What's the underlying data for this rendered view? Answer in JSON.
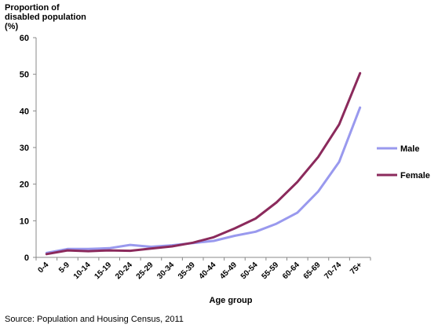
{
  "chart_data": {
    "type": "line",
    "ylabel_lines": [
      "Proportion of",
      "disabled population",
      "(%)"
    ],
    "xlabel": "Age group",
    "categories": [
      "0-4",
      "5-9",
      "10-14",
      "15-19",
      "20-24",
      "25-29",
      "30-34",
      "35-39",
      "40-44",
      "45-49",
      "50-54",
      "55-59",
      "60-64",
      "65-69",
      "70-74",
      "75+"
    ],
    "ylim": [
      0,
      60
    ],
    "yticks": [
      0,
      10,
      20,
      30,
      40,
      50,
      60
    ],
    "grid": false,
    "legend_position": "right",
    "series": [
      {
        "name": "Male",
        "color": "#9999ee",
        "values": [
          1.2,
          2.3,
          2.3,
          2.5,
          3.4,
          2.9,
          3.3,
          3.9,
          4.5,
          5.9,
          7.0,
          9.2,
          12.2,
          18.0,
          26.1,
          40.9
        ]
      },
      {
        "name": "Female",
        "color": "#8b2a5c",
        "values": [
          0.9,
          1.9,
          1.7,
          1.9,
          1.8,
          2.4,
          3.0,
          4.0,
          5.5,
          7.9,
          10.6,
          15.0,
          20.6,
          27.4,
          36.3,
          50.3
        ]
      }
    ]
  },
  "source": "Source: Population and Housing Census, 2011"
}
